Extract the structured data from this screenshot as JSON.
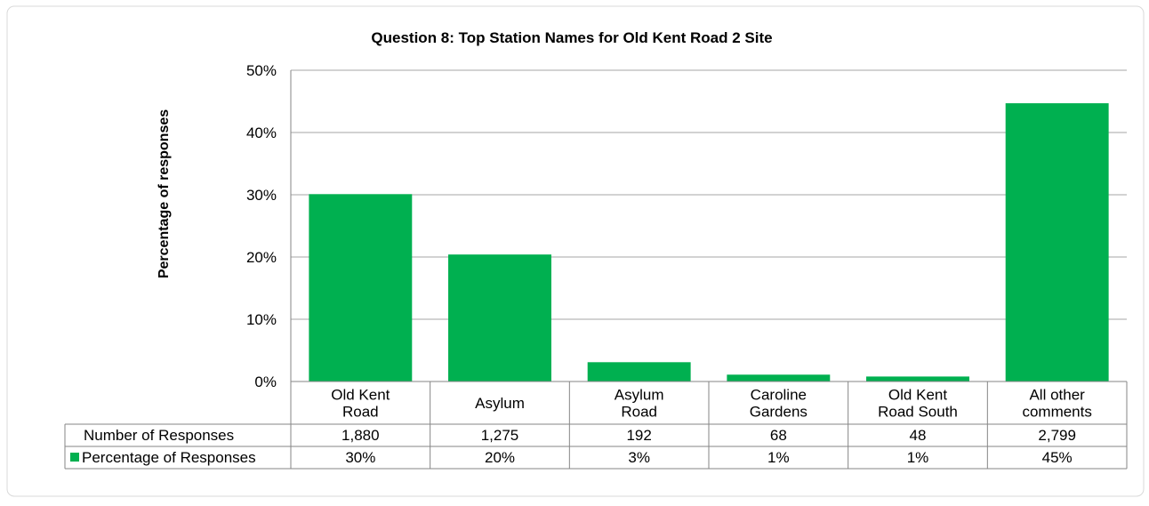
{
  "chart_data": {
    "type": "bar",
    "title": "Question 8: Top Station Names for Old Kent Road 2 Site",
    "ylabel": "Percentage of responses",
    "ylim": [
      0,
      0.5
    ],
    "yticks": [
      0,
      0.1,
      0.2,
      0.3,
      0.4,
      0.5
    ],
    "ytick_labels": [
      "0%",
      "10%",
      "20%",
      "30%",
      "40%",
      "50%"
    ],
    "grid": true,
    "categories": [
      [
        "Old Kent",
        "Road"
      ],
      [
        "Asylum"
      ],
      [
        "Asylum",
        "Road"
      ],
      [
        "Caroline",
        "Gardens"
      ],
      [
        "Old Kent",
        "Road South"
      ],
      [
        "All other",
        "comments"
      ]
    ],
    "values": [
      0.301,
      0.204,
      0.031,
      0.011,
      0.008,
      0.447
    ],
    "bar_color": "#00B050",
    "data_table": {
      "rows": [
        {
          "label": "Number of Responses",
          "legend_key": false,
          "cells": [
            "1,880",
            "1,275",
            "192",
            "68",
            "48",
            "2,799"
          ]
        },
        {
          "label": "Percentage of Responses",
          "legend_key": true,
          "cells": [
            "30%",
            "20%",
            "3%",
            "1%",
            "1%",
            "45%"
          ]
        }
      ]
    }
  }
}
